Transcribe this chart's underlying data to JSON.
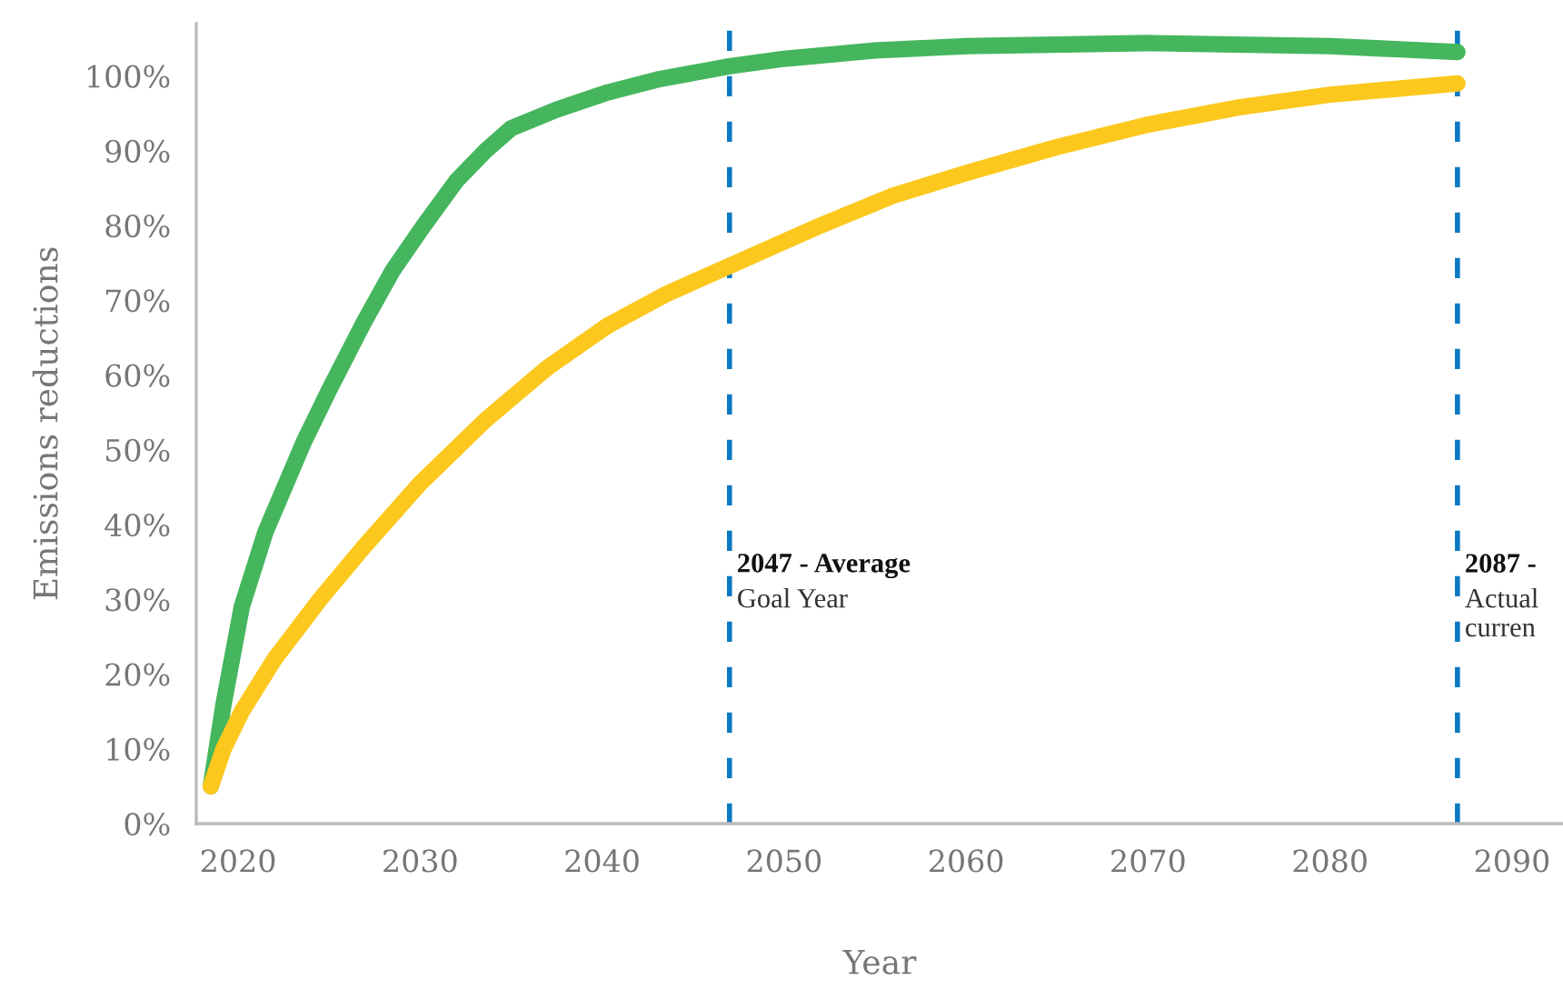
{
  "chart_data": {
    "type": "line",
    "xlabel": "Year",
    "ylabel": "Emissions reductions",
    "series": [
      {
        "color": "#45b65d",
        "x": [
          2018.5,
          2019.2,
          2020.2,
          2021.5,
          2023.6,
          2025,
          2026.9,
          2028.5,
          2030.2,
          2032,
          2033.6,
          2035,
          2037.5,
          2040.3,
          2043,
          2047,
          2050,
          2055,
          2060,
          2070,
          2080,
          2087
        ],
        "values": [
          5,
          16,
          29,
          39,
          51,
          58,
          67,
          74,
          80,
          86,
          90,
          93,
          95.5,
          97.8,
          99.5,
          101.3,
          102.3,
          103.4,
          104,
          104.4,
          104,
          103.2
        ]
      },
      {
        "color": "#fcc81e",
        "x": [
          2018.5,
          2019.2,
          2020.2,
          2022,
          2024.5,
          2026.9,
          2030,
          2033.6,
          2037,
          2040.3,
          2043.5,
          2047,
          2052,
          2056,
          2060,
          2065,
          2070,
          2075,
          2080,
          2087
        ],
        "values": [
          5,
          10,
          15,
          22,
          30,
          37,
          45.5,
          54,
          61,
          66.6,
          70.8,
          74.6,
          80,
          84,
          87,
          90.5,
          93.5,
          95.8,
          97.5,
          99
        ]
      }
    ],
    "xlim": [
      2017.7,
      2092.8
    ],
    "xticks": [
      2020,
      2030,
      2040,
      2050,
      2060,
      2070,
      2080,
      2090
    ],
    "ylim": [
      0,
      107
    ],
    "yticks": [
      {
        "value": 0,
        "label": "0%"
      },
      {
        "value": 10,
        "label": "10%"
      },
      {
        "value": 20,
        "label": "20%"
      },
      {
        "value": 30,
        "label": "30%"
      },
      {
        "value": 40,
        "label": "40%"
      },
      {
        "value": 50,
        "label": "50%"
      },
      {
        "value": 60,
        "label": "60%"
      },
      {
        "value": 70,
        "label": "70%"
      },
      {
        "value": 80,
        "label": "80%"
      },
      {
        "value": 90,
        "label": "90%"
      },
      {
        "value": 100,
        "label": "100%"
      }
    ],
    "ref_lines": [
      {
        "axis": "x",
        "value": 2047,
        "label": "2047 - Average\nGoal Year",
        "color": "#0a78c2",
        "line_style": "dashed"
      },
      {
        "axis": "x",
        "value": 2087,
        "label": "2087 -\nActual\ncurren",
        "color": "#0a78c2",
        "line_style": "dashed"
      }
    ],
    "grid": false,
    "legend": false,
    "marker": "none",
    "line_style": "solid"
  }
}
